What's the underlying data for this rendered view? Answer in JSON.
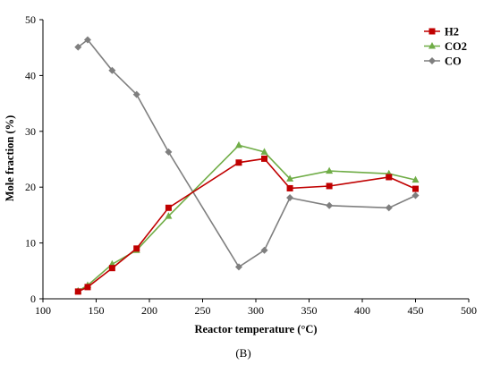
{
  "chart_data": {
    "type": "line",
    "xlabel": "Reactor temperature (°C)",
    "ylabel": "Mole fraction (%)",
    "xlim": [
      100,
      500
    ],
    "ylim": [
      0,
      50
    ],
    "xticks": [
      100,
      150,
      200,
      250,
      300,
      350,
      400,
      450,
      500
    ],
    "yticks": [
      0,
      10,
      20,
      30,
      40,
      50
    ],
    "grid": false,
    "legend_position": "top-right",
    "series": [
      {
        "name": "H2",
        "color": "#c00000",
        "marker": "square",
        "points": [
          [
            133,
            1.3
          ],
          [
            142,
            2.1
          ],
          [
            165,
            5.5
          ],
          [
            188,
            9.0
          ],
          [
            218,
            16.3
          ],
          [
            284,
            24.4
          ],
          [
            308,
            25.1
          ],
          [
            332,
            19.8
          ],
          [
            369,
            20.2
          ],
          [
            425,
            21.8
          ],
          [
            450,
            19.7
          ]
        ]
      },
      {
        "name": "CO2",
        "color": "#70ad47",
        "marker": "triangle",
        "points": [
          [
            133,
            1.4
          ],
          [
            142,
            2.4
          ],
          [
            165,
            6.2
          ],
          [
            188,
            8.7
          ],
          [
            218,
            14.8
          ],
          [
            284,
            27.5
          ],
          [
            308,
            26.3
          ],
          [
            332,
            21.5
          ],
          [
            369,
            22.9
          ],
          [
            425,
            22.4
          ],
          [
            450,
            21.3
          ]
        ]
      },
      {
        "name": "CO",
        "color": "#7f7f7f",
        "marker": "diamond",
        "points": [
          [
            133,
            45.1
          ],
          [
            142,
            46.4
          ],
          [
            165,
            40.9
          ],
          [
            188,
            36.6
          ],
          [
            218,
            26.3
          ],
          [
            284,
            5.7
          ],
          [
            308,
            8.7
          ],
          [
            332,
            18.1
          ],
          [
            369,
            16.7
          ],
          [
            425,
            16.3
          ],
          [
            450,
            18.5
          ]
        ]
      }
    ]
  },
  "caption": "(B)"
}
